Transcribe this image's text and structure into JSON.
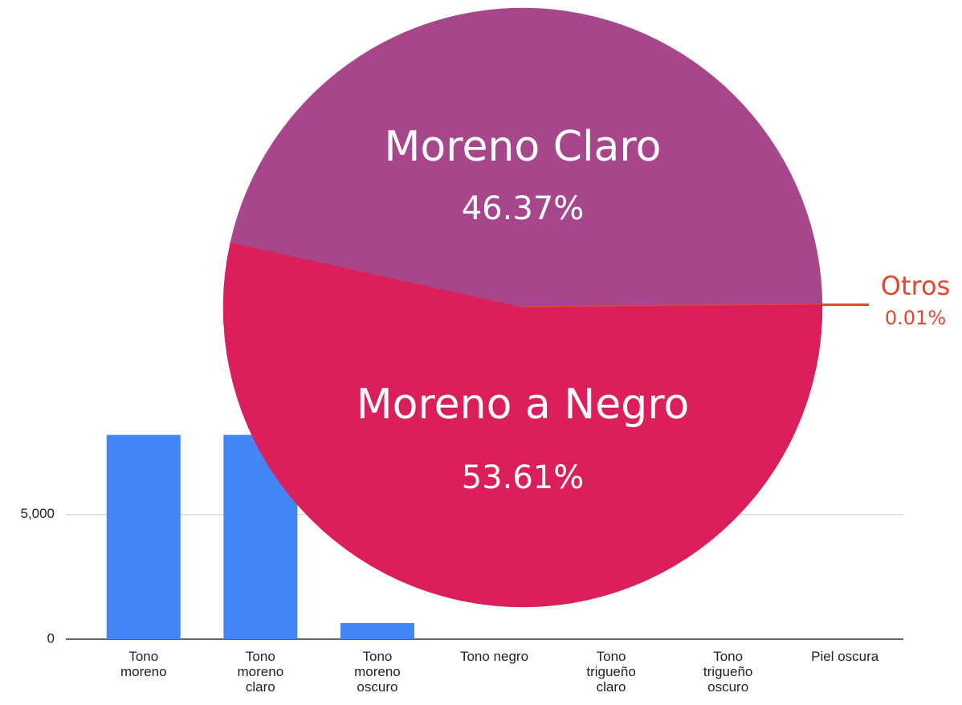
{
  "chart_data": [
    {
      "type": "bar",
      "categories": [
        "Tono moreno",
        "Tono moreno claro",
        "Tono moreno oscuro",
        "Tono negro",
        "Tono trigueño claro",
        "Tono trigueño oscuro",
        "Piel oscura"
      ],
      "values": [
        8190,
        8190,
        645,
        0,
        0,
        0,
        0
      ],
      "color": "#4285f4",
      "ylim": [
        0,
        8500
      ],
      "yticks": [
        0,
        {
          "value": 5000,
          "label": "5,000"
        }
      ],
      "grid": true
    },
    {
      "type": "pie",
      "categories": [
        "Moreno Claro",
        "Otros",
        "Moreno a Negro"
      ],
      "values": [
        46.37,
        0.01,
        53.61
      ],
      "value_labels": [
        "46.37%",
        "0.01%",
        "53.61%"
      ],
      "colors": [
        "#a8468c",
        "#e8452f",
        "#db1f5b"
      ]
    }
  ]
}
